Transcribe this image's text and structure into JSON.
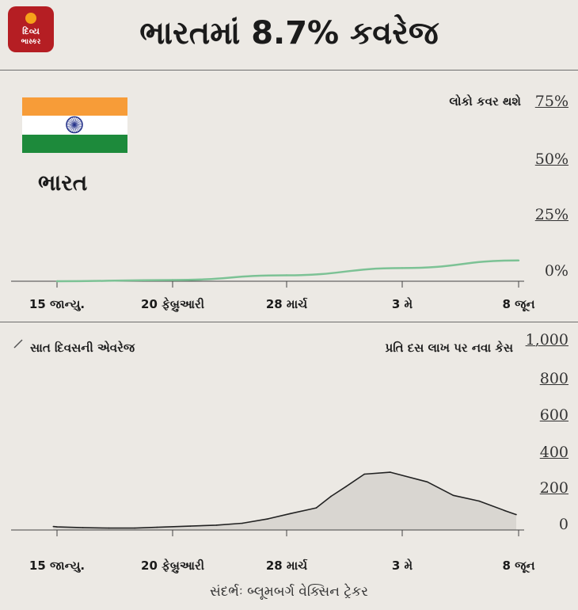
{
  "brand": {
    "line1": "દિવ્ય",
    "line2": "ભાસ્કર"
  },
  "headline": "ભારતમાં 8.7% કવરેજ",
  "country": "ભારત",
  "flag_colors": {
    "saffron": "#f79c38",
    "white": "#ffffff",
    "green": "#1d8a3b",
    "chakra": "#27348b"
  },
  "source": "સંદર્ભઃ બ્લૂમબર્ગ વેક્સિન ટ્રેકર",
  "chart_data": [
    {
      "type": "line",
      "title": "",
      "ylabel": "લોકો કવર થશે",
      "x_tick_labels": [
        "15 જાન્યુ.",
        "20 ફેબ્રુઆરી",
        "28 માર્ચ",
        "3 મે",
        "8 જૂન"
      ],
      "y_tick_labels": [
        "75%",
        "50%",
        "25%",
        "0%"
      ],
      "ylim": [
        0,
        75
      ],
      "color": "#7cc295",
      "series": [
        {
          "x": [
            "15 જાન્યુ.",
            "20 ફેબ્રુઆરી",
            "28 માર્ચ",
            "3 મે",
            "8 જૂન"
          ],
          "y": [
            0,
            0.5,
            2.5,
            5.5,
            8.7
          ]
        }
      ]
    },
    {
      "type": "area",
      "title": "",
      "legend": "સાત દિવસની એવરેજ",
      "ylabel": "પ્રતિ દસ લાખ પર નવા કેસ",
      "x_tick_labels": [
        "15 જાન્યુ.",
        "20 ફેબ્રુઆરી",
        "28 માર્ચ",
        "3 મે",
        "8 જૂન"
      ],
      "y_tick_labels": [
        "1,000",
        "800",
        "600",
        "400",
        "200",
        "0"
      ],
      "ylim": [
        0,
        1000
      ],
      "color": "#222222",
      "fill": "#d9d6d1",
      "series": [
        {
          "x": [
            -1,
            0,
            7,
            14,
            21,
            27,
            36,
            43,
            50,
            57,
            63,
            70,
            74,
            78,
            83,
            90,
            100,
            107,
            114,
            121,
            124
          ],
          "y": [
            18,
            16,
            12,
            10,
            10,
            14,
            20,
            25,
            35,
            58,
            85,
            115,
            175,
            225,
            290,
            300,
            250,
            180,
            150,
            100,
            80
          ]
        }
      ]
    }
  ]
}
